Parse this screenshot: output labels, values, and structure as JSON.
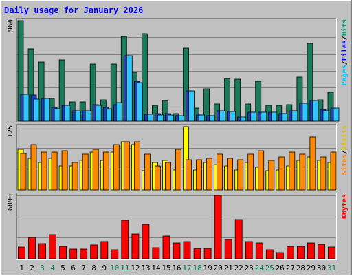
{
  "chart_data": {
    "type": "bar",
    "title": "Daily usage for January 2026",
    "categories": [
      "1",
      "2",
      "3",
      "4",
      "5",
      "6",
      "7",
      "8",
      "9",
      "10",
      "11",
      "12",
      "13",
      "14",
      "15",
      "16",
      "17",
      "18",
      "19",
      "20",
      "21",
      "22",
      "23",
      "24",
      "25",
      "26",
      "27",
      "28",
      "29",
      "30",
      "31"
    ],
    "weekend_days": [
      3,
      4,
      10,
      11,
      17,
      18,
      24,
      25,
      31
    ],
    "panels": [
      {
        "id": "hits-files-pages",
        "ymax_label": "964",
        "ymax": 964,
        "legend": [
          "Pages",
          "/",
          "Files",
          "/",
          "Hits"
        ],
        "series": [
          {
            "name": "Hits",
            "color": "#1a7a5a",
            "values": [
              964,
              690,
              570,
              220,
              585,
              185,
              185,
              545,
              205,
              545,
              815,
              470,
              840,
              150,
              200,
              70,
              700,
              125,
              310,
              165,
              410,
              405,
              165,
              385,
              155,
              155,
              160,
              425,
              745,
              205,
              275
            ]
          },
          {
            "name": "Files",
            "color": "#2040c0",
            "values": [
              260,
              250,
              215,
              130,
              150,
              100,
              100,
              160,
              130,
              160,
              630,
              380,
              65,
              70,
              70,
              50,
              290,
              60,
              55,
              100,
              95,
              40,
              85,
              85,
              85,
              70,
              100,
              170,
              195,
              110,
              125
            ]
          },
          {
            "name": "Pages",
            "color": "#30c8ff",
            "values": [
              260,
              210,
              215,
              120,
              150,
              100,
              100,
              155,
              120,
              180,
              630,
              370,
              65,
              60,
              60,
              50,
              290,
              60,
              55,
              100,
              95,
              40,
              85,
              85,
              85,
              70,
              100,
              170,
              195,
              100,
              125
            ]
          }
        ]
      },
      {
        "id": "visits-sites",
        "ymax_label": "125",
        "ymax": 125,
        "legend": [
          "Sites",
          "/",
          "Visits"
        ],
        "series": [
          {
            "name": "Visits",
            "color": "#ffff00",
            "values": [
              80,
              62,
              55,
              62,
              48,
              48,
              58,
              75,
              58,
              75,
              95,
              90,
              38,
              55,
              58,
              40,
              125,
              40,
              55,
              50,
              48,
              40,
              55,
              45,
              38,
              40,
              48,
              58,
              65,
              58,
              55
            ]
          },
          {
            "name": "Sites",
            "color": "#ff8800",
            "values": [
              72,
              90,
              75,
              75,
              78,
              55,
              70,
              80,
              75,
              90,
              95,
              95,
              70,
              48,
              55,
              80,
              60,
              60,
              62,
              70,
              62,
              60,
              70,
              78,
              58,
              65,
              75,
              70,
              105,
              65,
              75
            ]
          }
        ]
      },
      {
        "id": "kbytes",
        "ymax_label": "6890",
        "ymax": 6890,
        "legend": [
          "KBytes"
        ],
        "series": [
          {
            "name": "KBytes",
            "color": "#ff0000",
            "values": [
              1300,
              2300,
              1650,
              2600,
              1350,
              1050,
              1050,
              1500,
              1900,
              1000,
              4200,
              2700,
              3750,
              1200,
              2500,
              1750,
              1850,
              1150,
              1150,
              6890,
              2100,
              4300,
              1850,
              1700,
              1000,
              650,
              1350,
              1350,
              1750,
              1550,
              1300
            ]
          }
        ]
      }
    ],
    "colors": {
      "background": "#c0c0c0",
      "title": "#0000ff",
      "frame_light": "#ffffff",
      "frame_dark": "#808080",
      "day_label": "#000000",
      "weekend_label": "#00805a",
      "legend_pages": "#00c0ff",
      "legend_files": "#0000ff",
      "legend_hits": "#00a080",
      "legend_sites": "#ff8000",
      "legend_visits": "#e0c000",
      "legend_kbytes": "#ff0000"
    }
  }
}
